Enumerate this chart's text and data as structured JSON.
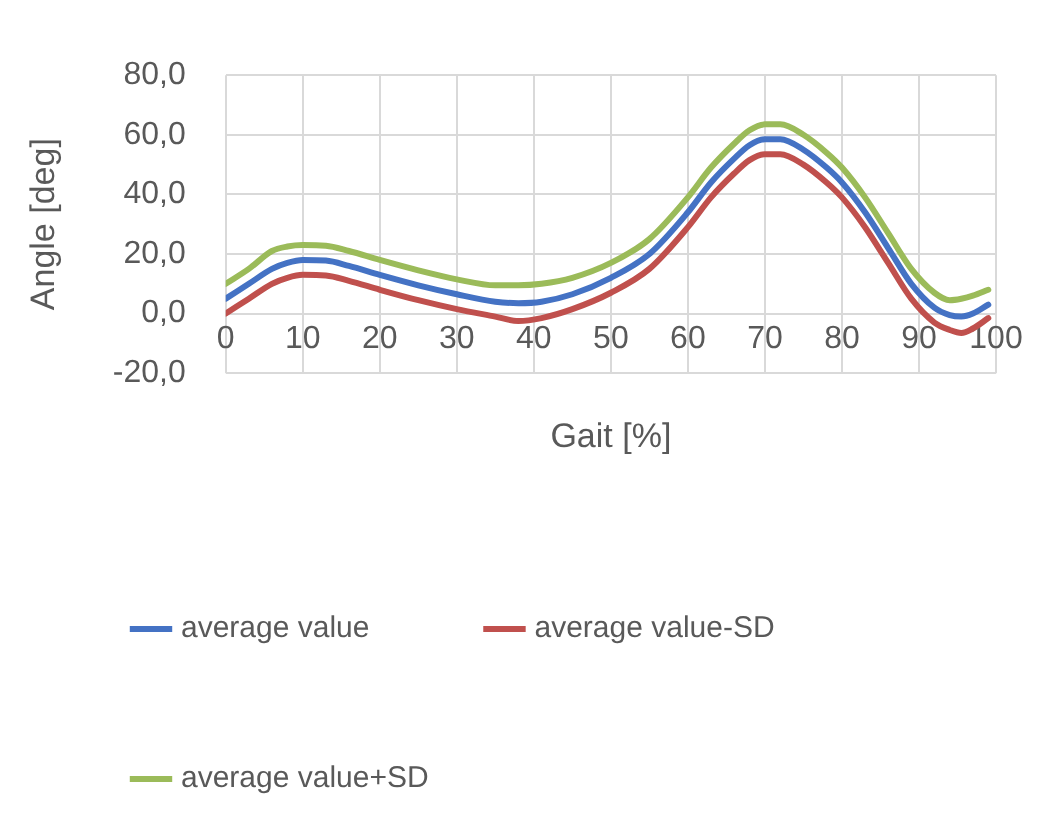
{
  "chart_data": {
    "type": "line",
    "xlabel": "Gait [%]",
    "ylabel": "Angle [deg]",
    "x": [
      0,
      3,
      6,
      8,
      10,
      13,
      16,
      20,
      25,
      30,
      35,
      38,
      41,
      45,
      50,
      55,
      60,
      63,
      66,
      68,
      70,
      72,
      75,
      78,
      80,
      83,
      86,
      89,
      92,
      94,
      95.5,
      97,
      99
    ],
    "series": [
      {
        "name": "average value",
        "color": "#4472c4",
        "values": [
          5,
          10,
          15,
          17,
          18,
          17.8,
          16,
          13,
          9.5,
          6.5,
          4,
          3.5,
          4,
          6.5,
          12,
          20,
          34,
          44,
          52,
          56.5,
          58.5,
          58.5,
          55,
          49,
          44,
          34,
          22,
          10,
          2,
          -0.5,
          -1,
          0,
          3
        ]
      },
      {
        "name": "average value-SD",
        "color": "#c0504d",
        "values": [
          0,
          5,
          10,
          12,
          13,
          12.8,
          11,
          8,
          4.5,
          1.5,
          -1,
          -2.5,
          -1.5,
          1.5,
          7,
          15,
          29,
          39,
          47,
          51.5,
          53.5,
          53.5,
          50,
          44,
          39,
          29,
          17,
          5,
          -3,
          -5.5,
          -6.5,
          -5,
          -1.5
        ]
      },
      {
        "name": "average value+SD",
        "color": "#9bbb59",
        "values": [
          10,
          15,
          21,
          22.5,
          23,
          22.8,
          21,
          18,
          14.5,
          11.5,
          9.5,
          9.5,
          10,
          12,
          17,
          25,
          39,
          49,
          57,
          61.5,
          63.5,
          63.5,
          60,
          54,
          49,
          39,
          27,
          15,
          7,
          4.5,
          5,
          6,
          8
        ]
      }
    ],
    "xlim": [
      0,
      100
    ],
    "xticks": [
      0,
      10,
      20,
      30,
      40,
      50,
      60,
      70,
      80,
      90,
      100
    ],
    "ylim": [
      -20,
      80
    ],
    "yticks": [
      {
        "value": -20,
        "label": "-20,0"
      },
      {
        "value": 0,
        "label": "0,0"
      },
      {
        "value": 20,
        "label": "20,0"
      },
      {
        "value": 40,
        "label": "40,0"
      },
      {
        "value": 60,
        "label": "60,0"
      },
      {
        "value": 80,
        "label": "80,0"
      }
    ],
    "grid": true,
    "legend": "bottom",
    "marker": "none",
    "line_style": "solid"
  }
}
